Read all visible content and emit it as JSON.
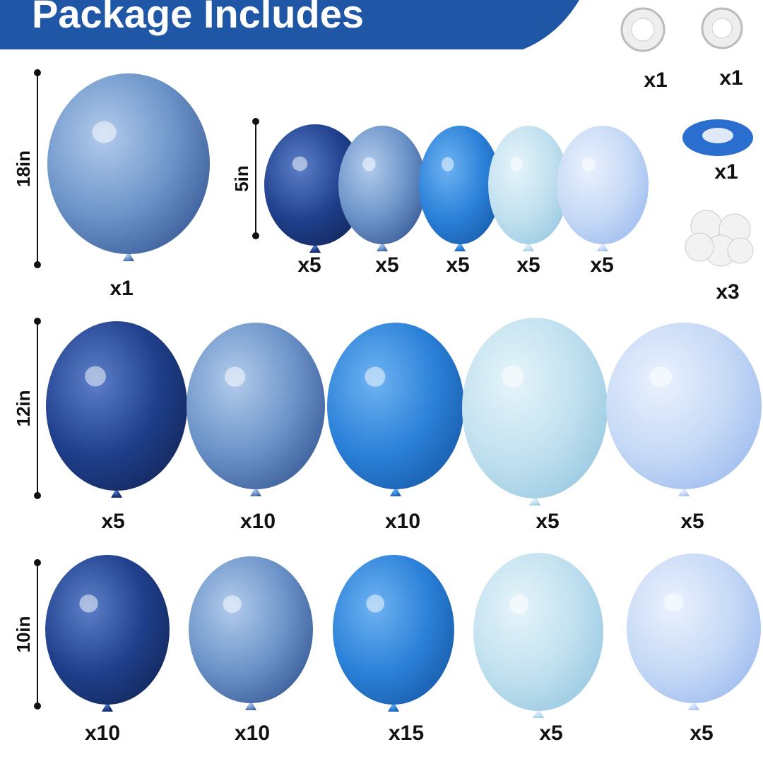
{
  "header": {
    "title": "Package Includes"
  },
  "groups": [
    {
      "size": "18in",
      "counts": [
        "x1"
      ]
    },
    {
      "size": "5in",
      "counts": [
        "x5",
        "x5",
        "x5",
        "x5",
        "x5"
      ]
    },
    {
      "size": "12in",
      "counts": [
        "x5",
        "x10",
        "x10",
        "x5",
        "x5"
      ]
    },
    {
      "size": "10in",
      "counts": [
        "x10",
        "x10",
        "x15",
        "x5",
        "x5"
      ]
    }
  ],
  "accessories": {
    "counts": [
      "x1",
      "x1",
      "x1",
      "x3"
    ]
  }
}
